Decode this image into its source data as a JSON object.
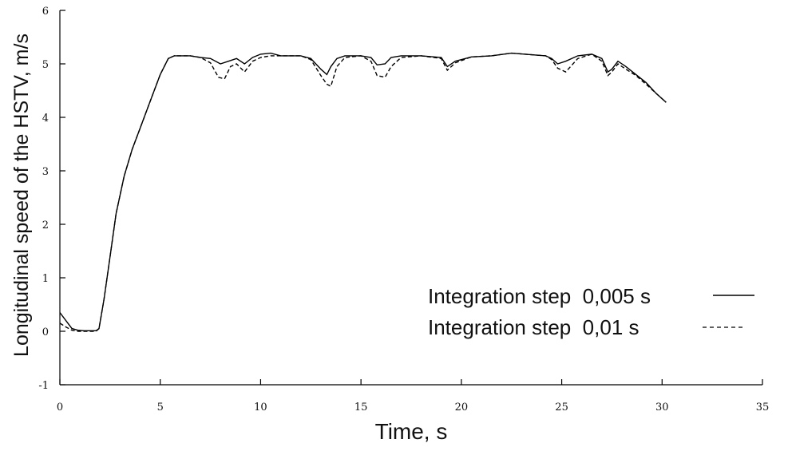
{
  "chart_data": {
    "type": "line",
    "title": "",
    "xlabel": "Time, s",
    "ylabel": "Longitudinal speed of the HSTV, m/s",
    "xlim": [
      0,
      35
    ],
    "ylim": [
      -1,
      6
    ],
    "xticks": [
      0,
      5,
      10,
      15,
      20,
      25,
      30,
      35
    ],
    "yticks": [
      -1,
      0,
      1,
      2,
      3,
      4,
      5,
      6
    ],
    "grid": false,
    "legend_position": "bottom-right",
    "series": [
      {
        "name": "Integration step  0,005 s",
        "style": "solid",
        "color": "#000000",
        "x": [
          0,
          0.3,
          0.6,
          0.9,
          1.2,
          1.5,
          1.8,
          1.95,
          2.2,
          2.5,
          2.8,
          3.2,
          3.6,
          4.0,
          4.5,
          5.0,
          5.4,
          5.7,
          6.0,
          6.5,
          7.0,
          7.5,
          8.0,
          8.4,
          8.8,
          9.2,
          9.6,
          10.0,
          10.5,
          11.0,
          12.0,
          12.5,
          13.0,
          13.3,
          13.5,
          13.8,
          14.2,
          15.0,
          15.5,
          15.8,
          16.2,
          16.5,
          17.0,
          18.0,
          19.0,
          19.3,
          19.7,
          20.5,
          21.5,
          22.5,
          23.5,
          24.2,
          24.5,
          24.8,
          25.2,
          25.8,
          26.5,
          27.0,
          27.3,
          27.5,
          27.8,
          28.2,
          28.7,
          29.2,
          29.7,
          30.2
        ],
        "y": [
          0.35,
          0.2,
          0.05,
          0.02,
          0.01,
          0.01,
          0.01,
          0.05,
          0.6,
          1.4,
          2.2,
          2.9,
          3.4,
          3.8,
          4.3,
          4.8,
          5.1,
          5.15,
          5.15,
          5.15,
          5.12,
          5.1,
          5.0,
          5.05,
          5.1,
          5.0,
          5.12,
          5.18,
          5.2,
          5.15,
          5.15,
          5.1,
          4.9,
          4.8,
          4.95,
          5.1,
          5.15,
          5.15,
          5.12,
          4.98,
          5.0,
          5.12,
          5.15,
          5.15,
          5.12,
          4.95,
          5.05,
          5.13,
          5.15,
          5.2,
          5.17,
          5.15,
          5.1,
          5.0,
          5.05,
          5.15,
          5.18,
          5.1,
          4.85,
          4.9,
          5.05,
          4.95,
          4.8,
          4.65,
          4.45,
          4.28
        ]
      },
      {
        "name": "Integration step  0,01 s",
        "style": "dashed",
        "color": "#000000",
        "x": [
          0,
          0.3,
          0.6,
          0.9,
          1.2,
          1.5,
          1.8,
          1.95,
          2.2,
          2.5,
          2.8,
          3.2,
          3.6,
          4.0,
          4.5,
          5.0,
          5.4,
          5.7,
          6.0,
          6.5,
          7.0,
          7.5,
          7.9,
          8.2,
          8.5,
          8.8,
          9.2,
          9.6,
          10.0,
          10.5,
          11.0,
          12.0,
          12.5,
          13.0,
          13.3,
          13.5,
          13.8,
          14.2,
          15.0,
          15.5,
          15.8,
          16.2,
          16.5,
          17.0,
          18.0,
          19.0,
          19.3,
          19.7,
          20.5,
          21.5,
          22.5,
          23.5,
          24.2,
          24.5,
          24.8,
          25.2,
          25.8,
          26.5,
          27.0,
          27.3,
          27.5,
          27.8,
          28.2,
          28.7,
          29.2,
          29.7,
          30.2
        ],
        "y": [
          0.15,
          0.08,
          0.02,
          0.0,
          0.0,
          0.0,
          0.0,
          0.05,
          0.6,
          1.4,
          2.2,
          2.9,
          3.4,
          3.8,
          4.3,
          4.8,
          5.1,
          5.15,
          5.15,
          5.15,
          5.12,
          5.02,
          4.75,
          4.72,
          4.95,
          5.0,
          4.85,
          5.05,
          5.12,
          5.15,
          5.15,
          5.15,
          5.08,
          4.78,
          4.62,
          4.58,
          4.95,
          5.12,
          5.15,
          5.05,
          4.78,
          4.75,
          4.95,
          5.12,
          5.15,
          5.1,
          4.88,
          5.02,
          5.13,
          5.15,
          5.2,
          5.17,
          5.15,
          5.08,
          4.92,
          4.85,
          5.1,
          5.18,
          5.05,
          4.78,
          4.85,
          5.0,
          4.9,
          4.78,
          4.62,
          4.45,
          4.28
        ]
      }
    ]
  }
}
